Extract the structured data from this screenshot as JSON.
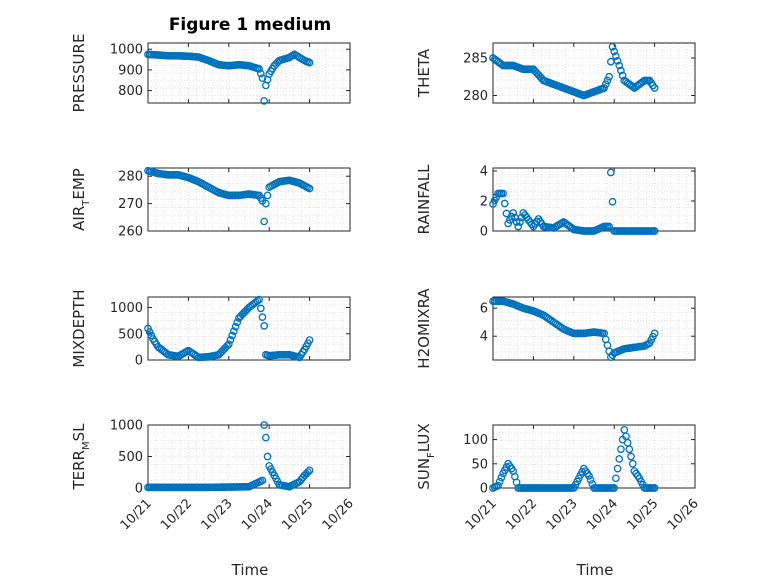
{
  "figure": {
    "title": "Figure 1 medium"
  },
  "chart_data": [
    {
      "type": "scatter",
      "ylabel": "PRESSURE",
      "xlim": [
        "10/21",
        "10/26"
      ],
      "ylim": [
        740,
        1030
      ],
      "yticks": [
        800,
        900,
        1000
      ],
      "grid": "minor",
      "points": [
        [
          "10/21 00:00",
          975
        ],
        [
          "10/21 06:00",
          972
        ],
        [
          "10/21 12:00",
          968
        ],
        [
          "10/21 18:00",
          968
        ],
        [
          "10/22 00:00",
          966
        ],
        [
          "10/22 06:00",
          962
        ],
        [
          "10/22 12:00",
          945
        ],
        [
          "10/22 18:00",
          925
        ],
        [
          "10/23 00:00",
          920
        ],
        [
          "10/23 06:00",
          925
        ],
        [
          "10/23 12:00",
          920
        ],
        [
          "10/23 18:00",
          905
        ],
        [
          "10/23 20:00",
          860
        ],
        [
          "10/23 21:00",
          750
        ],
        [
          "10/23 22:00",
          825
        ],
        [
          "10/24 00:00",
          880
        ],
        [
          "10/24 03:00",
          920
        ],
        [
          "10/24 06:00",
          945
        ],
        [
          "10/24 12:00",
          960
        ],
        [
          "10/24 15:00",
          975
        ],
        [
          "10/24 18:00",
          960
        ],
        [
          "10/24 21:00",
          945
        ],
        [
          "10/25 00:00",
          935
        ]
      ]
    },
    {
      "type": "scatter",
      "ylabel": "THETA",
      "xlim": [
        "10/21",
        "10/26"
      ],
      "ylim": [
        279,
        287
      ],
      "yticks": [
        280,
        285
      ],
      "grid": "minor",
      "points": [
        [
          "10/21 00:00",
          285
        ],
        [
          "10/21 06:00",
          284
        ],
        [
          "10/21 12:00",
          284
        ],
        [
          "10/21 18:00",
          283.5
        ],
        [
          "10/22 00:00",
          283.5
        ],
        [
          "10/22 06:00",
          282
        ],
        [
          "10/22 12:00",
          281.5
        ],
        [
          "10/22 18:00",
          281
        ],
        [
          "10/23 00:00",
          280.5
        ],
        [
          "10/23 06:00",
          280
        ],
        [
          "10/23 12:00",
          280.5
        ],
        [
          "10/23 18:00",
          281
        ],
        [
          "10/23 21:00",
          282.5
        ],
        [
          "10/23 23:00",
          286.5
        ],
        [
          "10/24 03:00",
          284
        ],
        [
          "10/24 06:00",
          282
        ],
        [
          "10/24 12:00",
          281
        ],
        [
          "10/24 18:00",
          282
        ],
        [
          "10/24 21:00",
          282
        ],
        [
          "10/25 00:00",
          281
        ]
      ]
    },
    {
      "type": "scatter",
      "ylabel": "AIR_TEMP",
      "xlim": [
        "10/21",
        "10/26"
      ],
      "ylim": [
        260,
        283
      ],
      "yticks": [
        260,
        270,
        280
      ],
      "grid": "minor",
      "points": [
        [
          "10/21 00:00",
          282
        ],
        [
          "10/21 06:00",
          281
        ],
        [
          "10/21 12:00",
          280.5
        ],
        [
          "10/21 18:00",
          280.5
        ],
        [
          "10/22 00:00",
          279.5
        ],
        [
          "10/22 06:00",
          278
        ],
        [
          "10/22 12:00",
          276
        ],
        [
          "10/22 18:00",
          274
        ],
        [
          "10/23 00:00",
          273
        ],
        [
          "10/23 06:00",
          273
        ],
        [
          "10/23 12:00",
          273.5
        ],
        [
          "10/23 18:00",
          273
        ],
        [
          "10/23 20:00",
          271
        ],
        [
          "10/23 21:00",
          263.5
        ],
        [
          "10/23 22:00",
          270
        ],
        [
          "10/24 00:00",
          276
        ],
        [
          "10/24 06:00",
          278
        ],
        [
          "10/24 12:00",
          278.5
        ],
        [
          "10/24 18:00",
          277.5
        ],
        [
          "10/25 00:00",
          275.5
        ]
      ]
    },
    {
      "type": "scatter",
      "ylabel": "RAINFALL",
      "xlim": [
        "10/21",
        "10/26"
      ],
      "ylim": [
        0,
        4.2
      ],
      "yticks": [
        0,
        2,
        4
      ],
      "grid": "minor",
      "points": [
        [
          "10/21 00:00",
          1.8
        ],
        [
          "10/21 03:00",
          2.5
        ],
        [
          "10/21 06:00",
          2.5
        ],
        [
          "10/21 09:00",
          0.5
        ],
        [
          "10/21 12:00",
          1.2
        ],
        [
          "10/21 15:00",
          0.3
        ],
        [
          "10/21 18:00",
          1.2
        ],
        [
          "10/22 00:00",
          0.3
        ],
        [
          "10/22 03:00",
          0.8
        ],
        [
          "10/22 06:00",
          0.3
        ],
        [
          "10/22 12:00",
          0.2
        ],
        [
          "10/22 18:00",
          0.6
        ],
        [
          "10/23 00:00",
          0.1
        ],
        [
          "10/23 06:00",
          0
        ],
        [
          "10/23 12:00",
          0
        ],
        [
          "10/23 18:00",
          0.3
        ],
        [
          "10/23 21:00",
          0.3
        ],
        [
          "10/23 22:00",
          3.9
        ],
        [
          "10/24 00:00",
          0
        ],
        [
          "10/24 12:00",
          0
        ],
        [
          "10/25 00:00",
          0
        ]
      ]
    },
    {
      "type": "scatter",
      "ylabel": "MIXDEPTH",
      "xlim": [
        "10/21",
        "10/26"
      ],
      "ylim": [
        0,
        1200
      ],
      "yticks": [
        0,
        500,
        1000
      ],
      "grid": "minor",
      "points": [
        [
          "10/21 00:00",
          600
        ],
        [
          "10/21 03:00",
          400
        ],
        [
          "10/21 06:00",
          250
        ],
        [
          "10/21 12:00",
          100
        ],
        [
          "10/21 18:00",
          70
        ],
        [
          "10/22 00:00",
          180
        ],
        [
          "10/22 06:00",
          50
        ],
        [
          "10/22 12:00",
          60
        ],
        [
          "10/22 18:00",
          100
        ],
        [
          "10/23 00:00",
          300
        ],
        [
          "10/23 06:00",
          800
        ],
        [
          "10/23 12:00",
          1000
        ],
        [
          "10/23 18:00",
          1150
        ],
        [
          "10/23 21:00",
          650
        ],
        [
          "10/23 22:00",
          100
        ],
        [
          "10/24 00:00",
          80
        ],
        [
          "10/24 06:00",
          100
        ],
        [
          "10/24 12:00",
          100
        ],
        [
          "10/24 18:00",
          50
        ],
        [
          "10/24 21:00",
          200
        ],
        [
          "10/25 00:00",
          380
        ]
      ]
    },
    {
      "type": "scatter",
      "ylabel": "H2OMIXRA",
      "xlim": [
        "10/21",
        "10/26"
      ],
      "ylim": [
        2.3,
        6.8
      ],
      "yticks": [
        4,
        6
      ],
      "grid": "minor",
      "points": [
        [
          "10/21 00:00",
          6.5
        ],
        [
          "10/21 06:00",
          6.5
        ],
        [
          "10/21 12:00",
          6.3
        ],
        [
          "10/21 18:00",
          6
        ],
        [
          "10/22 00:00",
          5.8
        ],
        [
          "10/22 06:00",
          5.5
        ],
        [
          "10/22 12:00",
          5
        ],
        [
          "10/22 18:00",
          4.5
        ],
        [
          "10/23 00:00",
          4.2
        ],
        [
          "10/23 06:00",
          4.2
        ],
        [
          "10/23 12:00",
          4.3
        ],
        [
          "10/23 18:00",
          4.2
        ],
        [
          "10/23 22:00",
          2.5
        ],
        [
          "10/24 00:00",
          2.8
        ],
        [
          "10/24 06:00",
          3.1
        ],
        [
          "10/24 12:00",
          3.2
        ],
        [
          "10/24 18:00",
          3.3
        ],
        [
          "10/24 21:00",
          3.5
        ],
        [
          "10/25 00:00",
          4.2
        ]
      ]
    },
    {
      "type": "scatter",
      "ylabel": "TERR_MSL",
      "xlim": [
        "10/21",
        "10/26"
      ],
      "ylim": [
        0,
        1000
      ],
      "yticks": [
        0,
        500,
        1000
      ],
      "grid": "minor",
      "points": [
        [
          "10/21 00:00",
          10
        ],
        [
          "10/21 12:00",
          10
        ],
        [
          "10/22 00:00",
          10
        ],
        [
          "10/22 12:00",
          10
        ],
        [
          "10/23 00:00",
          15
        ],
        [
          "10/23 12:00",
          20
        ],
        [
          "10/23 20:00",
          120
        ],
        [
          "10/23 21:00",
          1000
        ],
        [
          "10/23 22:00",
          800
        ],
        [
          "10/23 23:00",
          500
        ],
        [
          "10/24 00:00",
          350
        ],
        [
          "10/24 03:00",
          200
        ],
        [
          "10/24 06:00",
          50
        ],
        [
          "10/24 12:00",
          20
        ],
        [
          "10/24 18:00",
          100
        ],
        [
          "10/24 21:00",
          200
        ],
        [
          "10/25 00:00",
          280
        ]
      ]
    },
    {
      "type": "scatter",
      "ylabel": "SUN_FLUX",
      "xlim": [
        "10/21",
        "10/26"
      ],
      "ylim": [
        0,
        130
      ],
      "yticks": [
        0,
        50,
        100
      ],
      "grid": "minor",
      "points": [
        [
          "10/21 00:00",
          0
        ],
        [
          "10/21 03:00",
          5
        ],
        [
          "10/21 06:00",
          30
        ],
        [
          "10/21 09:00",
          50
        ],
        [
          "10/21 12:00",
          35
        ],
        [
          "10/21 15:00",
          0
        ],
        [
          "10/22 00:00",
          0
        ],
        [
          "10/22 12:00",
          0
        ],
        [
          "10/23 00:00",
          0
        ],
        [
          "10/23 03:00",
          20
        ],
        [
          "10/23 06:00",
          40
        ],
        [
          "10/23 09:00",
          25
        ],
        [
          "10/23 12:00",
          0
        ],
        [
          "10/24 00:00",
          0
        ],
        [
          "10/24 03:00",
          60
        ],
        [
          "10/24 06:00",
          120
        ],
        [
          "10/24 09:00",
          80
        ],
        [
          "10/24 12:00",
          35
        ],
        [
          "10/24 15:00",
          20
        ],
        [
          "10/24 18:00",
          0
        ],
        [
          "10/25 00:00",
          0
        ]
      ]
    }
  ],
  "axes": {
    "xticks": [
      "10/21",
      "10/22",
      "10/23",
      "10/24",
      "10/25",
      "10/26"
    ],
    "xlabel": "Time",
    "ylabels": [
      {
        "main": "PRESSURE",
        "sub": ""
      },
      {
        "main": "THETA",
        "sub": ""
      },
      {
        "main": "AIR",
        "sub": "T",
        "tail": "EMP"
      },
      {
        "main": "RAINFALL",
        "sub": ""
      },
      {
        "main": "MIXDEPTH",
        "sub": ""
      },
      {
        "main": "H2OMIXRA",
        "sub": ""
      },
      {
        "main": "TERR",
        "sub": "M",
        "tail": "SL"
      },
      {
        "main": "SUN",
        "sub": "F",
        "tail": "LUX"
      }
    ]
  },
  "colors": {
    "marker": "#0072BD",
    "axis": "#262626",
    "grid": "#d9d9d9"
  }
}
